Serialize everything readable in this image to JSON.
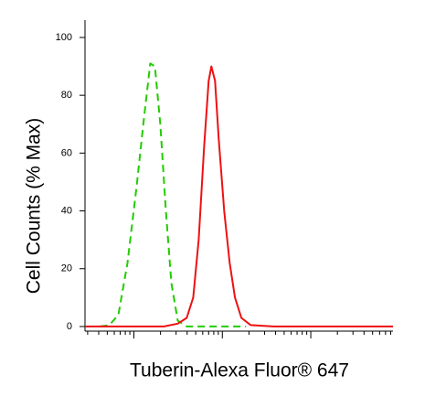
{
  "chart_data": {
    "type": "line",
    "ylabel": "Cell Counts (% Max)",
    "xlabel": "Tuberin-Alexa Fluor® 647",
    "log_x": true,
    "xlim": [
      28,
      85000
    ],
    "xticks": [
      30,
      40,
      50,
      60,
      70,
      80,
      90,
      100,
      200,
      300,
      400,
      500,
      600,
      700,
      800,
      900,
      1000,
      2000,
      3000,
      4000,
      5000,
      6000,
      7000,
      8000,
      9000,
      10000,
      20000,
      30000,
      40000,
      50000,
      60000,
      70000,
      80000
    ],
    "ylim": [
      -1.6,
      106
    ],
    "yticks": [
      0,
      20,
      40,
      60,
      80,
      100
    ],
    "series": [
      {
        "color": "#22cc00",
        "dashed": true,
        "x": [
          41.6,
          52.7,
          66.8,
          84.7,
          107,
          130,
          153,
          173,
          199,
          230,
          265,
          313,
          396,
          1850
        ],
        "values": [
          0,
          0.5,
          4,
          22,
          48,
          72,
          91,
          90,
          70,
          40,
          15,
          2,
          0,
          0
        ]
      },
      {
        "color": "#ee1111",
        "dashed": false,
        "x": [
          28,
          219,
          313,
          396,
          468,
          540,
          622,
          700,
          752,
          827,
          910,
          1050,
          1210,
          1390,
          1640,
          2090,
          3780,
          85000
        ],
        "values": [
          0,
          0,
          1,
          3,
          10,
          30,
          62,
          85,
          90,
          85,
          65,
          40,
          22,
          10,
          3,
          0.5,
          0,
          0
        ]
      }
    ]
  }
}
